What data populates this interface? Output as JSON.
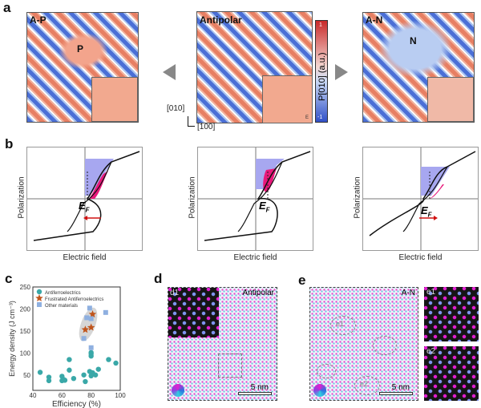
{
  "panel_a": {
    "label": "a",
    "maps": [
      {
        "title": "A-P",
        "region": "P"
      },
      {
        "title": "Antipolar"
      },
      {
        "title": "A-N",
        "region": "N"
      }
    ],
    "colorbar": {
      "label": "P[010] (a.u.)",
      "max": "1",
      "min": "-1",
      "colors": [
        "#d03030",
        "#ffffff",
        "#3050c8"
      ]
    },
    "axes": {
      "y": "[010]",
      "x": "[100]"
    },
    "inset_axis": "E"
  },
  "panel_b": {
    "label": "b",
    "ylabel": "Polarization",
    "xlabel": "Electric field",
    "ef_label": "E",
    "ef_sub": "F",
    "ef_arrows": [
      "left",
      "none",
      "right"
    ],
    "colors": {
      "loss": "#e8187a",
      "storage": "#a7a7f0",
      "arrow": "#d01010"
    }
  },
  "panel_c": {
    "label": "c",
    "chart_data": {
      "type": "scatter",
      "xlabel": "Efficiency (%)",
      "ylabel": "Energy density (J cm⁻³)",
      "xlim": [
        40,
        100
      ],
      "ylim": [
        15,
        250
      ],
      "xticks": [
        40,
        60,
        80,
        100
      ],
      "yticks": [
        50,
        100,
        150,
        200,
        250
      ],
      "legend": "top-left",
      "series": [
        {
          "name": "Antiferroelectrics",
          "marker": "circle",
          "color": "#3aa8a8",
          "points": [
            [
              45,
              56
            ],
            [
              51,
              45
            ],
            [
              51,
              37
            ],
            [
              60,
              47
            ],
            [
              60,
              37
            ],
            [
              61,
              40
            ],
            [
              62,
              38
            ],
            [
              65,
              85
            ],
            [
              65,
              61
            ],
            [
              68,
              42
            ],
            [
              75,
              50
            ],
            [
              76,
              35
            ],
            [
              79,
              58
            ],
            [
              80,
              93
            ],
            [
              80,
              98
            ],
            [
              80,
              101
            ],
            [
              80,
              48
            ],
            [
              81,
              55
            ],
            [
              83,
              50
            ],
            [
              85,
              63
            ],
            [
              92,
              85
            ],
            [
              97,
              77
            ]
          ]
        },
        {
          "name": "Frustrated Antiferroelectrics",
          "marker": "star",
          "color": "#c0551c",
          "points": [
            [
              76,
              153
            ],
            [
              80,
              158
            ],
            [
              81,
              188
            ]
          ]
        },
        {
          "name": "Other materials",
          "marker": "square",
          "color": "#8fb0e0",
          "points": [
            [
              75,
              133
            ],
            [
              77,
              180
            ],
            [
              79,
              202
            ],
            [
              80,
              178
            ],
            [
              80,
              112
            ],
            [
              90,
              192
            ]
          ]
        }
      ]
    }
  },
  "panel_d": {
    "label": "d",
    "title": "Antipolar",
    "inset": "d1",
    "scale": "5 nm"
  },
  "panel_e": {
    "label": "e",
    "title": "A-N",
    "regions": [
      "e1",
      "e2"
    ],
    "scale": "5 nm"
  }
}
